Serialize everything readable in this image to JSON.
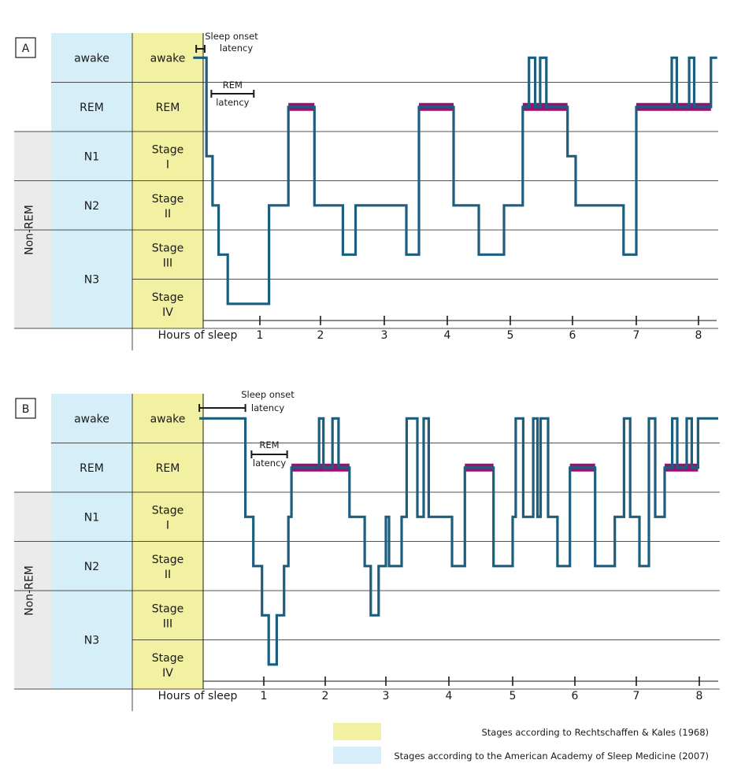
{
  "colors": {
    "aasm": "#d6eef8",
    "rk": "#f2f0a1",
    "nonrem": "#ebebeb",
    "hypnogram": "#1b5e7d",
    "rem_bar": "#9c0f74",
    "grid": "#1a1a1a"
  },
  "chart_data": [
    {
      "type": "line",
      "panel_label": "A",
      "title": "",
      "xlabel": "Hours of sleep",
      "ylabel": "",
      "xlim": [
        -0.95,
        8.3
      ],
      "x_ticks": [
        1,
        2,
        3,
        4,
        5,
        6,
        7,
        8
      ],
      "stage_rows": [
        {
          "aasm": "awake",
          "rk": "awake"
        },
        {
          "aasm": "REM",
          "rk": "REM"
        },
        {
          "aasm": "N1",
          "rk": "Stage I"
        },
        {
          "aasm": "N2",
          "rk": "Stage II"
        },
        {
          "aasm": "N3",
          "rk": "Stage III"
        },
        {
          "aasm": "N3",
          "rk": "Stage IV"
        }
      ],
      "group_label": "Non-REM",
      "annotations": [
        {
          "text_lines": [
            "Sleep onset",
            "latency"
          ],
          "x_from": -0.05,
          "x_to": 0.09
        },
        {
          "text_lines": [
            "REM",
            "latency"
          ],
          "x_from": 0.2,
          "x_to": 0.9
        }
      ],
      "hypnogram": [
        [
          -0.1,
          0
        ],
        [
          0.12,
          0
        ],
        [
          0.12,
          2
        ],
        [
          0.22,
          2
        ],
        [
          0.22,
          3
        ],
        [
          0.32,
          3
        ],
        [
          0.32,
          4
        ],
        [
          0.47,
          4
        ],
        [
          0.47,
          5
        ],
        [
          1.15,
          5
        ],
        [
          1.15,
          3
        ],
        [
          1.47,
          3
        ],
        [
          1.47,
          1
        ],
        [
          1.9,
          1
        ],
        [
          1.9,
          3
        ],
        [
          2.35,
          3
        ],
        [
          2.35,
          4
        ],
        [
          2.55,
          4
        ],
        [
          2.55,
          3
        ],
        [
          3.35,
          3
        ],
        [
          3.35,
          4
        ],
        [
          3.55,
          4
        ],
        [
          3.55,
          1
        ],
        [
          4.1,
          1
        ],
        [
          4.1,
          3
        ],
        [
          4.5,
          3
        ],
        [
          4.5,
          4
        ],
        [
          4.9,
          4
        ],
        [
          4.9,
          3
        ],
        [
          5.2,
          3
        ],
        [
          5.2,
          1
        ],
        [
          5.3,
          1
        ],
        [
          5.3,
          0
        ],
        [
          5.4,
          0
        ],
        [
          5.4,
          1
        ],
        [
          5.48,
          1
        ],
        [
          5.48,
          0
        ],
        [
          5.58,
          0
        ],
        [
          5.58,
          1
        ],
        [
          5.92,
          1
        ],
        [
          5.92,
          2
        ],
        [
          6.05,
          2
        ],
        [
          6.05,
          3
        ],
        [
          6.8,
          3
        ],
        [
          6.8,
          4
        ],
        [
          7.0,
          4
        ],
        [
          7.0,
          1
        ],
        [
          7.57,
          1
        ],
        [
          7.57,
          0
        ],
        [
          7.65,
          0
        ],
        [
          7.65,
          1
        ],
        [
          7.85,
          1
        ],
        [
          7.85,
          0
        ],
        [
          7.93,
          0
        ],
        [
          7.93,
          1
        ],
        [
          8.2,
          1
        ],
        [
          8.2,
          0
        ],
        [
          8.3,
          0
        ]
      ],
      "rem_periods": [
        [
          1.47,
          1.9
        ],
        [
          3.55,
          4.1
        ],
        [
          5.2,
          5.92
        ],
        [
          7.0,
          8.2
        ]
      ]
    },
    {
      "type": "line",
      "panel_label": "B",
      "title": "",
      "xlabel": "Hours of sleep",
      "ylabel": "",
      "xlim": [
        -0.95,
        8.3
      ],
      "x_ticks": [
        1,
        2,
        3,
        4,
        5,
        6,
        7,
        8
      ],
      "stage_rows": [
        {
          "aasm": "awake",
          "rk": "awake"
        },
        {
          "aasm": "REM",
          "rk": "REM"
        },
        {
          "aasm": "N1",
          "rk": "Stage I"
        },
        {
          "aasm": "N2",
          "rk": "Stage II"
        },
        {
          "aasm": "N3",
          "rk": "Stage III"
        },
        {
          "aasm": "N3",
          "rk": "Stage IV"
        }
      ],
      "group_label": "Non-REM",
      "annotations": [
        {
          "text_lines": [
            "Sleep onset",
            "latency"
          ],
          "x_from": -0.05,
          "x_to": 0.7
        },
        {
          "text_lines": [
            "REM",
            "latency"
          ],
          "x_from": 0.8,
          "x_to": 1.38
        }
      ],
      "hypnogram": [
        [
          -0.05,
          0
        ],
        [
          0.7,
          0
        ],
        [
          0.7,
          2
        ],
        [
          0.83,
          2
        ],
        [
          0.83,
          3
        ],
        [
          0.97,
          3
        ],
        [
          0.97,
          4
        ],
        [
          1.08,
          4
        ],
        [
          1.08,
          5
        ],
        [
          1.21,
          5
        ],
        [
          1.21,
          4
        ],
        [
          1.33,
          4
        ],
        [
          1.33,
          3
        ],
        [
          1.4,
          3
        ],
        [
          1.4,
          2
        ],
        [
          1.45,
          2
        ],
        [
          1.45,
          1
        ],
        [
          1.9,
          1
        ],
        [
          1.9,
          0
        ],
        [
          1.97,
          0
        ],
        [
          1.97,
          1
        ],
        [
          2.12,
          1
        ],
        [
          2.12,
          0
        ],
        [
          2.22,
          0
        ],
        [
          2.22,
          1
        ],
        [
          2.4,
          1
        ],
        [
          2.4,
          2
        ],
        [
          2.65,
          2
        ],
        [
          2.65,
          3
        ],
        [
          2.75,
          3
        ],
        [
          2.75,
          4
        ],
        [
          2.88,
          4
        ],
        [
          2.88,
          3
        ],
        [
          3.0,
          3
        ],
        [
          3.0,
          2
        ],
        [
          3.05,
          2
        ],
        [
          3.05,
          3
        ],
        [
          3.25,
          3
        ],
        [
          3.25,
          2
        ],
        [
          3.33,
          2
        ],
        [
          3.33,
          0
        ],
        [
          3.5,
          0
        ],
        [
          3.5,
          2
        ],
        [
          3.6,
          2
        ],
        [
          3.6,
          0
        ],
        [
          3.68,
          0
        ],
        [
          3.68,
          2
        ],
        [
          4.05,
          2
        ],
        [
          4.05,
          3
        ],
        [
          4.25,
          3
        ],
        [
          4.25,
          1
        ],
        [
          4.7,
          1
        ],
        [
          4.7,
          3
        ],
        [
          5.0,
          3
        ],
        [
          5.0,
          2
        ],
        [
          5.05,
          2
        ],
        [
          5.05,
          0
        ],
        [
          5.17,
          0
        ],
        [
          5.17,
          2
        ],
        [
          5.33,
          2
        ],
        [
          5.33,
          0
        ],
        [
          5.4,
          0
        ],
        [
          5.4,
          2
        ],
        [
          5.45,
          2
        ],
        [
          5.45,
          0
        ],
        [
          5.57,
          0
        ],
        [
          5.57,
          2
        ],
        [
          5.72,
          2
        ],
        [
          5.72,
          3
        ],
        [
          5.92,
          3
        ],
        [
          5.92,
          1
        ],
        [
          6.33,
          1
        ],
        [
          6.33,
          3
        ],
        [
          6.65,
          3
        ],
        [
          6.65,
          2
        ],
        [
          6.8,
          2
        ],
        [
          6.8,
          0
        ],
        [
          6.9,
          0
        ],
        [
          6.9,
          2
        ],
        [
          7.05,
          2
        ],
        [
          7.05,
          3
        ],
        [
          7.2,
          3
        ],
        [
          7.2,
          0
        ],
        [
          7.3,
          0
        ],
        [
          7.3,
          2
        ],
        [
          7.45,
          2
        ],
        [
          7.45,
          1
        ],
        [
          7.57,
          1
        ],
        [
          7.57,
          0
        ],
        [
          7.65,
          0
        ],
        [
          7.65,
          1
        ],
        [
          7.8,
          1
        ],
        [
          7.8,
          0
        ],
        [
          7.88,
          0
        ],
        [
          7.88,
          1
        ],
        [
          7.98,
          1
        ],
        [
          7.98,
          0
        ],
        [
          8.3,
          0
        ]
      ],
      "rem_periods": [
        [
          1.45,
          2.4
        ],
        [
          4.25,
          4.7
        ],
        [
          5.92,
          6.33
        ],
        [
          7.45,
          7.98
        ]
      ]
    }
  ],
  "legend": [
    {
      "label": "Stages according to Rechtschaffen & Kales (1968)",
      "color_key": "rk"
    },
    {
      "label": "Stages according to the American Academy of Sleep Medicine (2007)",
      "color_key": "aasm"
    }
  ]
}
